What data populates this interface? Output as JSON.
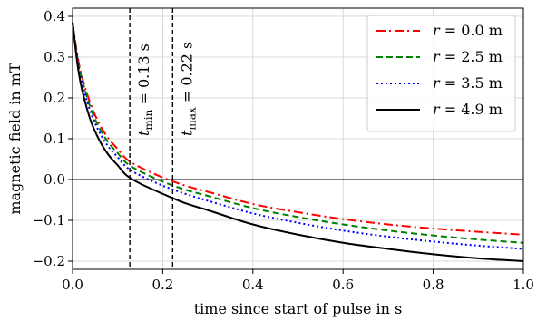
{
  "chart_data": {
    "type": "line",
    "title": "",
    "xlabel": "time since start of pulse in s",
    "ylabel": "magnetic field in mT",
    "xlim": [
      0.0,
      1.0
    ],
    "ylim": [
      -0.22,
      0.42
    ],
    "xticks": [
      0.0,
      0.2,
      0.4,
      0.6,
      0.8,
      1.0
    ],
    "xtick_labels": [
      "0.0",
      "0.2",
      "0.4",
      "0.6",
      "0.8",
      "1.0"
    ],
    "yticks": [
      -0.2,
      -0.1,
      0.0,
      0.1,
      0.2,
      0.3,
      0.4
    ],
    "ytick_labels": [
      "−0.2",
      "−0.1",
      "0.0",
      "0.1",
      "0.2",
      "0.3",
      "0.4"
    ],
    "grid": true,
    "legend_position": "top-right",
    "zero_line": 0.0,
    "x": [
      0.0,
      0.01,
      0.02,
      0.04,
      0.06,
      0.08,
      0.1,
      0.12,
      0.15,
      0.2,
      0.25,
      0.3,
      0.4,
      0.5,
      0.6,
      0.7,
      0.8,
      0.9,
      1.0
    ],
    "series": [
      {
        "name": "r = 0.0 m",
        "r_symbol": "r",
        "r_value": "= 0.0 m",
        "color": "#ff0000",
        "dash": "10,4,2,4",
        "values": [
          0.385,
          0.31,
          0.255,
          0.185,
          0.135,
          0.1,
          0.075,
          0.05,
          0.03,
          0.005,
          -0.015,
          -0.03,
          -0.06,
          -0.08,
          -0.097,
          -0.11,
          -0.12,
          -0.128,
          -0.135
        ]
      },
      {
        "name": "r = 2.5 m",
        "r_symbol": "r",
        "r_value": "= 2.5 m",
        "color": "#008000",
        "dash": "7,4",
        "values": [
          0.385,
          0.305,
          0.25,
          0.175,
          0.125,
          0.09,
          0.065,
          0.04,
          0.02,
          -0.005,
          -0.025,
          -0.04,
          -0.07,
          -0.092,
          -0.11,
          -0.125,
          -0.137,
          -0.147,
          -0.155
        ]
      },
      {
        "name": "r = 3.5 m",
        "r_symbol": "r",
        "r_value": "= 3.5 m",
        "color": "#0000ff",
        "dash": "2,3",
        "values": [
          0.385,
          0.3,
          0.24,
          0.165,
          0.115,
          0.08,
          0.055,
          0.03,
          0.01,
          -0.015,
          -0.035,
          -0.052,
          -0.083,
          -0.106,
          -0.125,
          -0.14,
          -0.152,
          -0.162,
          -0.17
        ]
      },
      {
        "name": "r = 4.9 m",
        "r_symbol": "r",
        "r_value": "= 4.9 m",
        "color": "#000000",
        "dash": "",
        "values": [
          0.385,
          0.29,
          0.225,
          0.145,
          0.095,
          0.06,
          0.035,
          0.01,
          -0.01,
          -0.035,
          -0.058,
          -0.075,
          -0.11,
          -0.135,
          -0.155,
          -0.17,
          -0.183,
          -0.193,
          -0.2
        ]
      }
    ],
    "annotations": [
      {
        "x": 0.127,
        "sym": "t",
        "sub": "min",
        "text": " = 0.13 s"
      },
      {
        "x": 0.222,
        "sym": "t",
        "sub": "max",
        "text": " = 0.22 s"
      }
    ]
  }
}
